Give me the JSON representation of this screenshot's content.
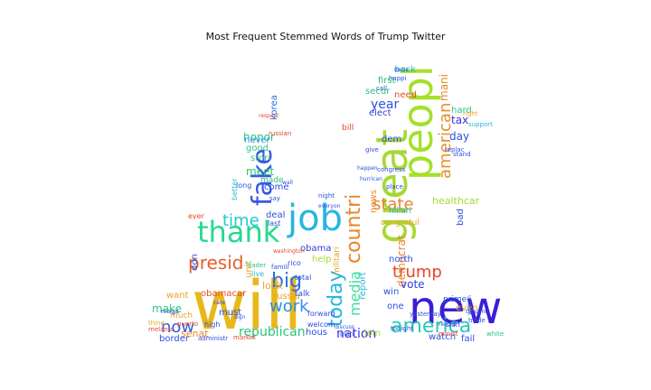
{
  "title": "Most Frequent Stemmed Words of Trump Twitter",
  "words": [
    {
      "text": "will",
      "color": "#e8b71a"
    },
    {
      "text": "new",
      "color": "#3b1fd6"
    },
    {
      "text": "great",
      "color": "#a6d934"
    },
    {
      "text": "peopl",
      "color": "#a4e02a"
    },
    {
      "text": "job",
      "color": "#27b5e0"
    },
    {
      "text": "thank",
      "color": "#26d98f"
    },
    {
      "text": "fake",
      "color": "#3b55e6"
    },
    {
      "text": "america",
      "color": "#2bc8b6"
    },
    {
      "text": "presid",
      "color": "#e85d2a"
    },
    {
      "text": "time",
      "color": "#1fc9d6"
    },
    {
      "text": "big",
      "color": "#2b6fe0"
    },
    {
      "text": "work",
      "color": "#2b8ee0"
    },
    {
      "text": "now",
      "color": "#2b5be6"
    },
    {
      "text": "today",
      "color": "#27b5e0"
    },
    {
      "text": "countri",
      "color": "#e8842a"
    },
    {
      "text": "state",
      "color": "#e8842a"
    },
    {
      "text": "american",
      "color": "#e88f2a"
    },
    {
      "text": "trump",
      "color": "#e8442a"
    },
    {
      "text": "republican",
      "color": "#2ac47a"
    },
    {
      "text": "nation",
      "color": "#3b2fd6"
    },
    {
      "text": "media",
      "color": "#3be09b"
    },
    {
      "text": "year",
      "color": "#2b4fe0"
    },
    {
      "text": "democrat",
      "color": "#e8842a"
    },
    {
      "text": "vote",
      "color": "#2b3fe0"
    },
    {
      "text": "make",
      "color": "#2ac47a"
    },
    {
      "text": "meet",
      "color": "#26c46a"
    },
    {
      "text": "honor",
      "color": "#26c48a"
    },
    {
      "text": "look",
      "color": "#e8a42a"
    },
    {
      "text": "senat",
      "color": "#e8842a"
    },
    {
      "text": "day",
      "color": "#2b4fe0"
    },
    {
      "text": "tax",
      "color": "#3b2fd6"
    },
    {
      "text": "hard",
      "color": "#2ac47a"
    },
    {
      "text": "mani",
      "color": "#e8842a"
    },
    {
      "text": "deal",
      "color": "#2b4fe0"
    },
    {
      "text": "news",
      "color": "#e8842a"
    },
    {
      "text": "stori",
      "color": "#2ac47a"
    },
    {
      "text": "good",
      "color": "#26c48a"
    },
    {
      "text": "never",
      "color": "#2b8ee0"
    },
    {
      "text": "korea",
      "color": "#2b6fe0"
    },
    {
      "text": "secur",
      "color": "#2ac47a"
    },
    {
      "text": "first",
      "color": "#26c46a"
    },
    {
      "text": "need",
      "color": "#e84a2a"
    },
    {
      "text": "back",
      "color": "#2bb8d6"
    },
    {
      "text": "elect",
      "color": "#2b3fe0"
    },
    {
      "text": "dem",
      "color": "#2b4fe0"
    },
    {
      "text": "north",
      "color": "#2b4fe0"
    },
    {
      "text": "win",
      "color": "#2b4fe0"
    },
    {
      "text": "one",
      "color": "#2b4fe0"
    },
    {
      "text": "russia",
      "color": "#e8a42a"
    },
    {
      "text": "come",
      "color": "#2b4fe0"
    },
    {
      "text": "help",
      "color": "#a6d934"
    },
    {
      "text": "must",
      "color": "#2b4fe0"
    },
    {
      "text": "watch",
      "color": "#2b4fe0"
    },
    {
      "text": "fail",
      "color": "#2b4fe0"
    },
    {
      "text": "report",
      "color": "#2bb8d6"
    },
    {
      "text": "even",
      "color": "#e8a42a"
    },
    {
      "text": "obama",
      "color": "#2b3fe0"
    },
    {
      "text": "obamacar",
      "color": "#e84a2a"
    },
    {
      "text": "want",
      "color": "#e8a42a"
    },
    {
      "text": "much",
      "color": "#e8a42a"
    },
    {
      "text": "border",
      "color": "#2b4fe0"
    },
    {
      "text": "hous",
      "color": "#2b4fe0"
    },
    {
      "text": "join",
      "color": "#a6d934"
    },
    {
      "text": "bad",
      "color": "#2b4fe0"
    },
    {
      "text": "healthcar",
      "color": "#a6d934"
    },
    {
      "text": "don",
      "color": "#2b4fe0"
    },
    {
      "text": "unit",
      "color": "#e8a42a"
    },
    {
      "text": "made",
      "color": "#2ac47a"
    },
    {
      "text": "hillari",
      "color": "#2bb8d6"
    },
    {
      "text": "congratul",
      "color": "#e8a42a"
    },
    {
      "text": "militari",
      "color": "#e8a42a"
    },
    {
      "text": "maga",
      "color": "#2b4fe0"
    },
    {
      "text": "talk",
      "color": "#2b4fe0"
    },
    {
      "text": "forward",
      "color": "#2b4fe0"
    },
    {
      "text": "prime",
      "color": "#2b4fe0"
    },
    {
      "text": "trade",
      "color": "#2b4fe0"
    },
    {
      "text": "support",
      "color": "#2bb8d6"
    },
    {
      "text": "right",
      "color": "#e8a42a"
    },
    {
      "text": "replac",
      "color": "#2b4fe0"
    },
    {
      "text": "bill",
      "color": "#e8442a"
    },
    {
      "text": "total",
      "color": "#2b4fe0"
    },
    {
      "text": "leader",
      "color": "#2ac47a"
    },
    {
      "text": "high",
      "color": "#2b4fe0"
    },
    {
      "text": "rico",
      "color": "#2b4fe0"
    },
    {
      "text": "welcom",
      "color": "#2b4fe0"
    },
    {
      "text": "plan",
      "color": "#2b4fe0"
    },
    {
      "text": "minist",
      "color": "#e8442a"
    },
    {
      "text": "white",
      "color": "#2ac47a"
    },
    {
      "text": "puerto",
      "color": "#e8442a"
    },
    {
      "text": "famili",
      "color": "#2b4fe0"
    },
    {
      "text": "ever",
      "color": "#e8442a"
    },
    {
      "text": "last",
      "color": "#2b4fe0"
    },
    {
      "text": "live",
      "color": "#2bb8d6"
    },
    {
      "text": "long",
      "color": "#2b4fe0"
    },
    {
      "text": "better",
      "color": "#2bb8d6"
    },
    {
      "text": "say",
      "color": "#2b4fe0"
    },
    {
      "text": "night",
      "color": "#2b4fe0"
    },
    {
      "text": "russian",
      "color": "#e8442a"
    },
    {
      "text": "washington",
      "color": "#e8442a"
    },
    {
      "text": "congress",
      "color": "#2b4fe0"
    },
    {
      "text": "give",
      "color": "#2b4fe0"
    },
    {
      "text": "place",
      "color": "#2b4fe0"
    },
    {
      "text": "stand",
      "color": "#2b4fe0"
    },
    {
      "text": "happi",
      "color": "#2b4fe0"
    },
    {
      "text": "call",
      "color": "#2b4fe0"
    },
    {
      "text": "market",
      "color": "#e8442a"
    },
    {
      "text": "administr",
      "color": "#2b4fe0"
    },
    {
      "text": "thing",
      "color": "#e8a42a"
    },
    {
      "text": "melania",
      "color": "#e8442a"
    },
    {
      "text": "yesterday",
      "color": "#2b4fe0"
    },
    {
      "text": "tonight",
      "color": "#2b4fe0"
    },
    {
      "text": "start",
      "color": "#2b4fe0"
    },
    {
      "text": "record",
      "color": "#2b4fe0"
    },
    {
      "text": "women",
      "color": "#2b4fe0"
    },
    {
      "text": "discuss",
      "color": "#2b4fe0"
    },
    {
      "text": "everyon",
      "color": "#2b4fe0"
    },
    {
      "text": "wall",
      "color": "#2b4fe0"
    },
    {
      "text": "sign",
      "color": "#2b4fe0"
    },
    {
      "text": "care",
      "color": "#2b4fe0"
    },
    {
      "text": "decis",
      "color": "#2b4fe0"
    },
    {
      "text": "happen",
      "color": "#2b4fe0"
    },
    {
      "text": "respect",
      "color": "#e8442a"
    },
    {
      "text": "hurrican",
      "color": "#2b4fe0"
    },
    {
      "text": "thought",
      "color": "#2b4fe0"
    }
  ]
}
